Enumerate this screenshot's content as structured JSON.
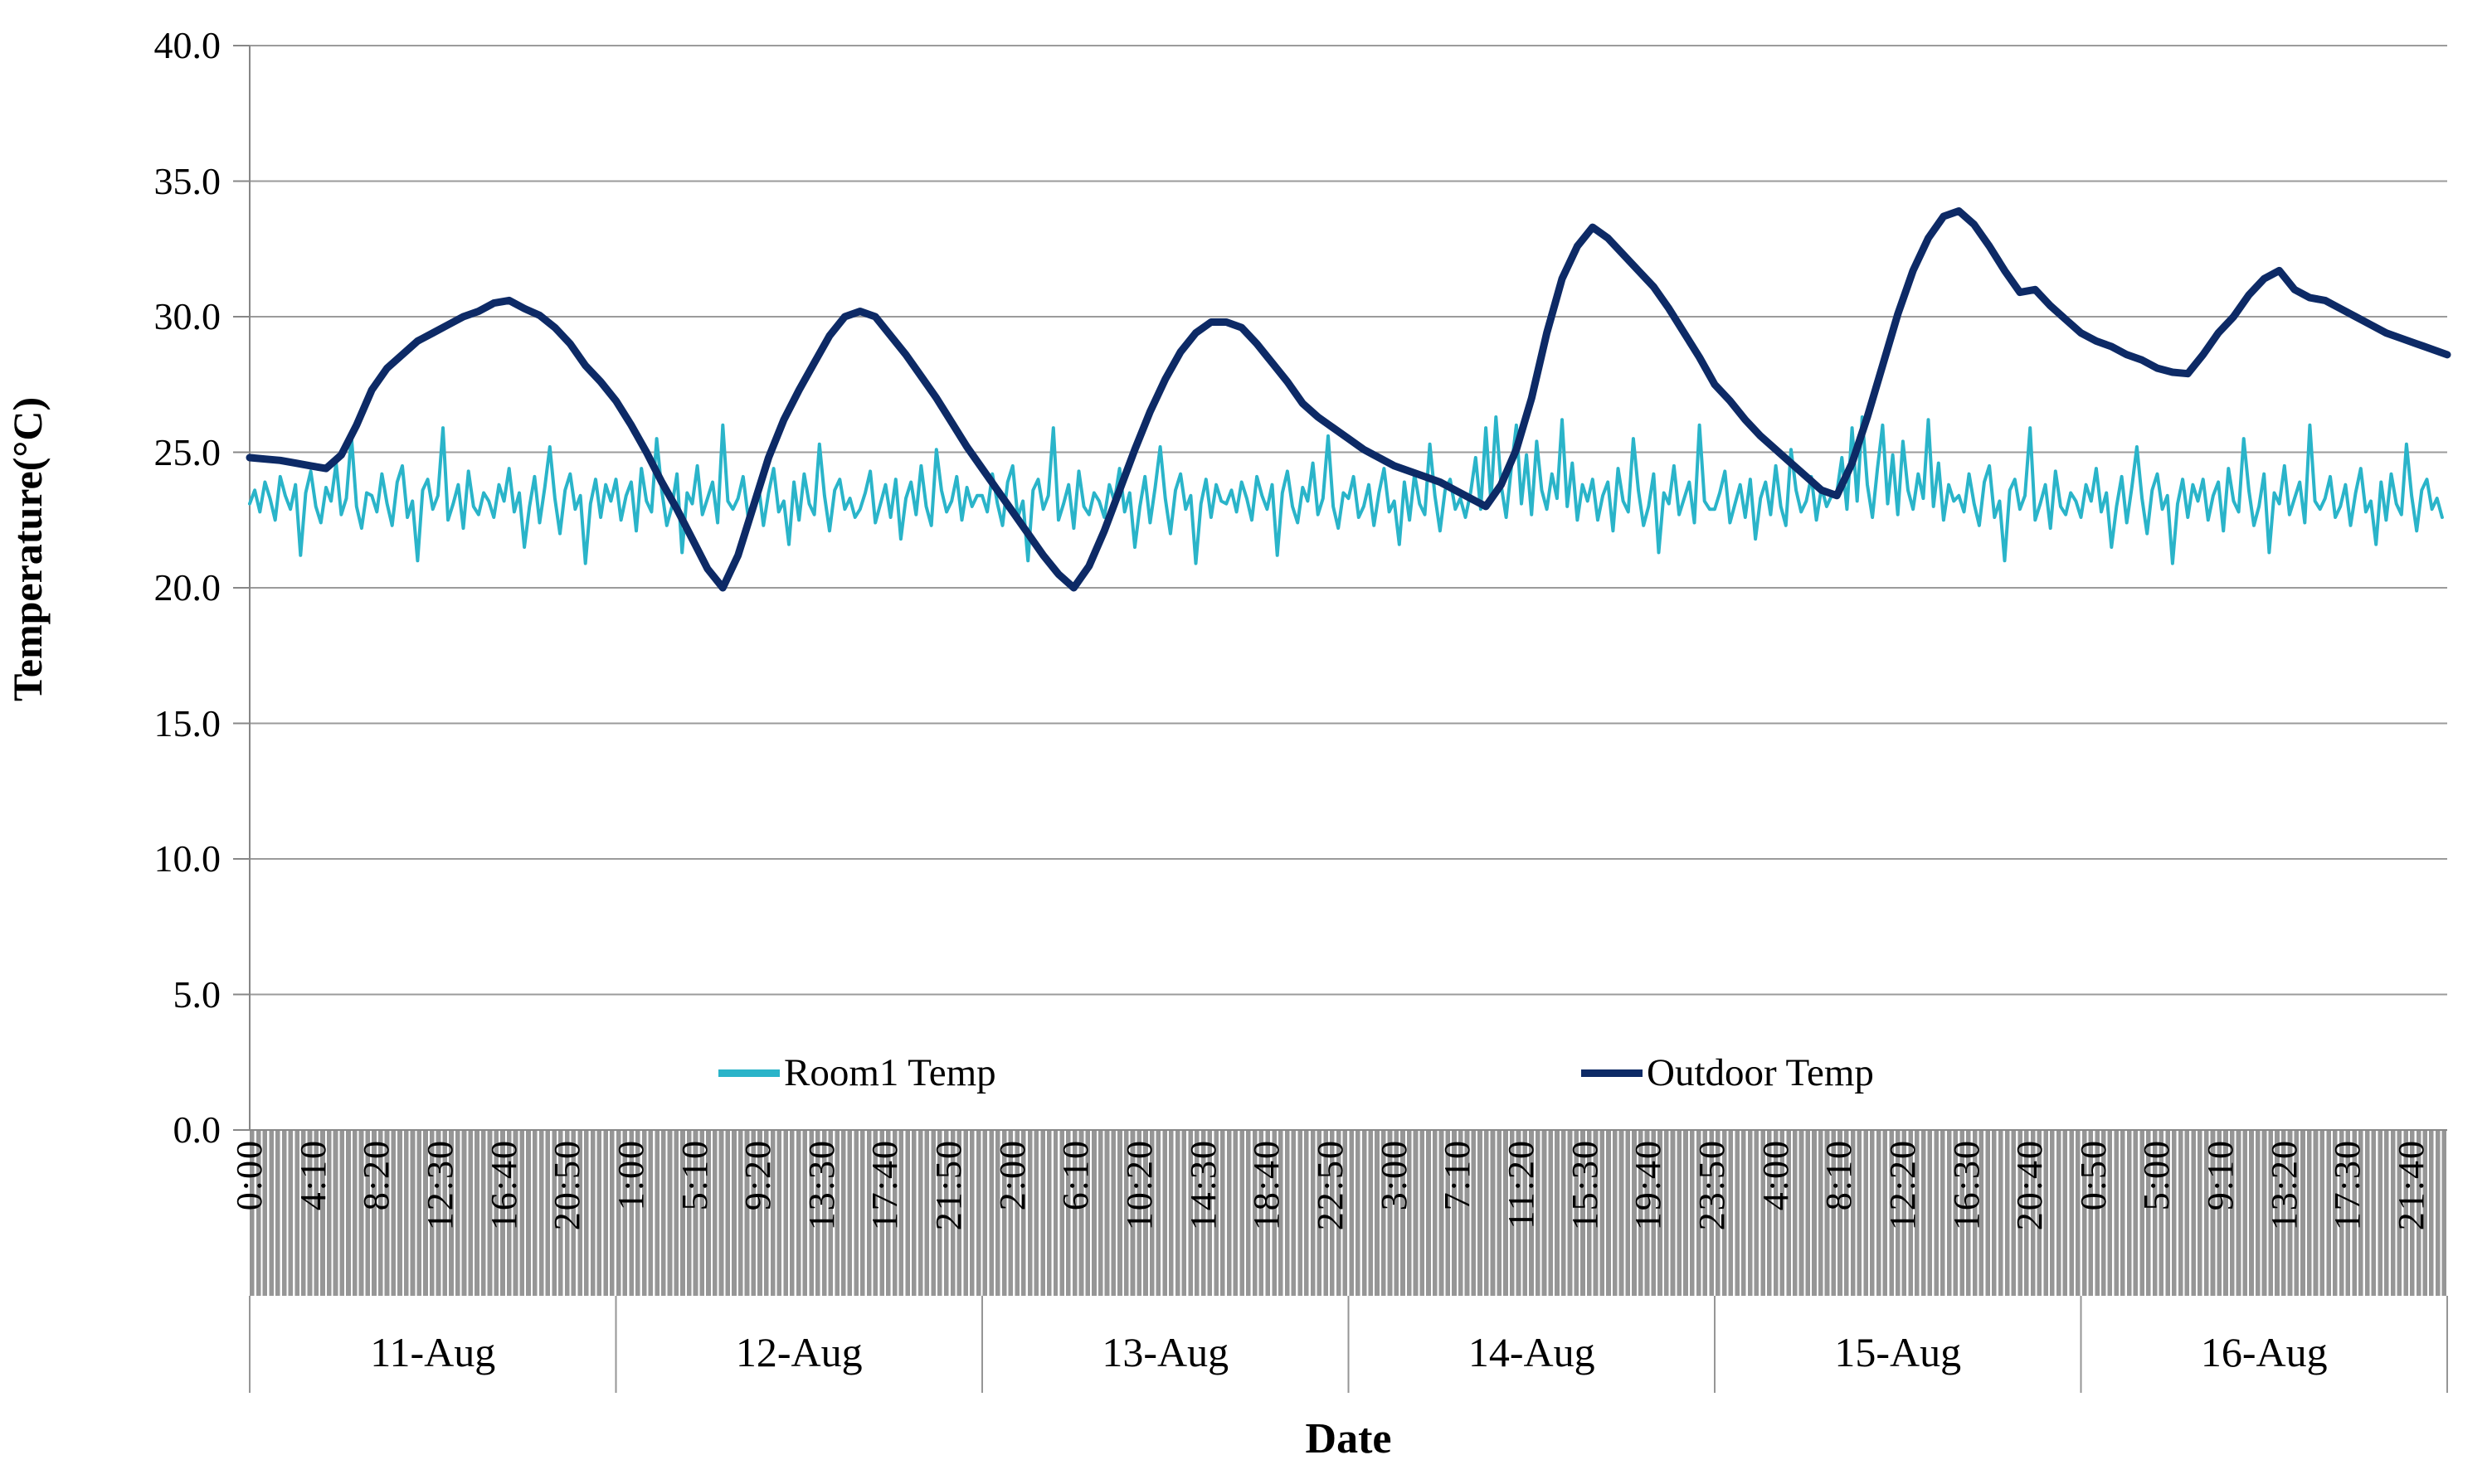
{
  "chart_data": {
    "type": "line",
    "title": "",
    "xlabel": "Date",
    "ylabel": "Temperature(°C)",
    "ylim": [
      0,
      40
    ],
    "y_tick_step": 5,
    "y_tick_labels": [
      "40.0",
      "35.0",
      "30.0",
      "25.0",
      "20.0",
      "15.0",
      "10.0",
      "5.0",
      "0.0"
    ],
    "grid": true,
    "legend_position": "bottom-inside",
    "x_unit": "hours since 11-Aug 00:00",
    "x_total_hours": 144,
    "x_tick_interval_minutes": 250,
    "x_tick_labels": [
      "0:00",
      "4:10",
      "8:20",
      "12:30",
      "16:40",
      "20:50",
      "1:00",
      "5:10",
      "9:20",
      "13:30",
      "17:40",
      "21:50",
      "2:00",
      "6:10",
      "10:20",
      "14:30",
      "18:40",
      "22:50",
      "3:00",
      "7:10",
      "11:20",
      "15:30",
      "19:40",
      "23:50",
      "4:00",
      "8:10",
      "12:20",
      "16:30",
      "20:40",
      "0:50",
      "5:00",
      "9:10",
      "13:20",
      "17:30",
      "21:40"
    ],
    "x_group_labels": [
      "11-Aug",
      "12-Aug",
      "13-Aug",
      "14-Aug",
      "15-Aug",
      "16-Aug"
    ],
    "colors": {
      "room1": "#2ab4c9",
      "outdoor": "#0d2a66",
      "gridline": "#9b9b9b",
      "axis": "#878787",
      "tick_band_fill": "#969696",
      "tick_band_stripe": "#ffffff",
      "text": "#000000"
    },
    "series": [
      {
        "name": "Room1 Temp",
        "color": "#2ab4c9",
        "stroke_width": 4,
        "x_start_hours": 0,
        "x_step_hours": 0.333333,
        "values": [
          23.1,
          23.6,
          22.8,
          23.9,
          23.3,
          22.5,
          24.1,
          23.4,
          22.9,
          23.8,
          21.2,
          23.5,
          24.3,
          23.0,
          22.4,
          23.7,
          23.2,
          24.6,
          22.7,
          23.3,
          25.6,
          23.0,
          22.2,
          23.5,
          23.4,
          22.8,
          24.2,
          23.1,
          22.3,
          23.9,
          24.5,
          22.6,
          23.2,
          21.0,
          23.6,
          24.0,
          22.9,
          23.4,
          25.9,
          22.5,
          23.1,
          23.8,
          22.2,
          24.3,
          23.0,
          22.7,
          23.5,
          23.2,
          22.6,
          23.8,
          23.2,
          24.4,
          22.8,
          23.5,
          21.5,
          23.0,
          24.1,
          22.4,
          23.7,
          25.2,
          23.3,
          22.0,
          23.6,
          24.2,
          22.9,
          23.4,
          20.9,
          23.1,
          24.0,
          22.6,
          23.8,
          23.2,
          24.0,
          22.5,
          23.4,
          23.9,
          22.1,
          24.4,
          23.2,
          22.8,
          25.5,
          23.6,
          22.3,
          23.0,
          24.2,
          21.3,
          23.5,
          23.1,
          24.5,
          22.7,
          23.3,
          23.9,
          22.4,
          26.0,
          23.2,
          22.9,
          23.3,
          24.1,
          22.6,
          23.0,
          23.8,
          22.3,
          23.5,
          24.4,
          22.8,
          23.2,
          21.6,
          23.9,
          22.5,
          24.2,
          23.1,
          22.7,
          25.3,
          23.4,
          22.1,
          23.6,
          24.0,
          22.9,
          23.3,
          22.6,
          22.9,
          23.5,
          24.3,
          22.4,
          23.1,
          23.8,
          22.6,
          24.0,
          21.8,
          23.3,
          23.9,
          22.7,
          24.5,
          23.0,
          22.3,
          25.1,
          23.6,
          22.8,
          23.2,
          24.1,
          22.5,
          23.7,
          23.0,
          23.4,
          23.4,
          22.8,
          24.2,
          23.1,
          22.3,
          23.9,
          24.5,
          22.6,
          23.2,
          21.0,
          23.6,
          24.0,
          22.9,
          23.4,
          25.9,
          22.5,
          23.1,
          23.8,
          22.2,
          24.3,
          23.0,
          22.7,
          23.5,
          23.2,
          22.6,
          23.8,
          23.2,
          24.4,
          22.8,
          23.5,
          21.5,
          23.0,
          24.1,
          22.4,
          23.7,
          25.2,
          23.3,
          22.0,
          23.6,
          24.2,
          22.9,
          23.4,
          20.9,
          23.1,
          24.0,
          22.6,
          23.8,
          23.2,
          23.1,
          23.6,
          22.8,
          23.9,
          23.3,
          22.5,
          24.1,
          23.4,
          22.9,
          23.8,
          21.2,
          23.5,
          24.3,
          23.0,
          22.4,
          23.7,
          23.2,
          24.6,
          22.7,
          23.3,
          25.6,
          23.0,
          22.2,
          23.5,
          23.3,
          24.1,
          22.6,
          23.0,
          23.8,
          22.3,
          23.5,
          24.4,
          22.8,
          23.2,
          21.6,
          23.9,
          22.5,
          24.2,
          23.1,
          22.7,
          25.3,
          23.4,
          22.1,
          23.6,
          24.0,
          22.9,
          23.3,
          22.6,
          23.5,
          24.8,
          22.9,
          25.9,
          23.2,
          26.3,
          23.8,
          22.6,
          24.4,
          26.0,
          23.1,
          24.9,
          22.7,
          25.4,
          23.6,
          22.9,
          24.2,
          23.3,
          26.2,
          23.0,
          24.6,
          22.5,
          23.8,
          23.2,
          24.0,
          22.5,
          23.4,
          23.9,
          22.1,
          24.4,
          23.2,
          22.8,
          25.5,
          23.6,
          22.3,
          23.0,
          24.2,
          21.3,
          23.5,
          23.1,
          24.5,
          22.7,
          23.3,
          23.9,
          22.4,
          26.0,
          23.2,
          22.9,
          22.9,
          23.5,
          24.3,
          22.4,
          23.1,
          23.8,
          22.6,
          24.0,
          21.8,
          23.3,
          23.9,
          22.7,
          24.5,
          23.0,
          22.3,
          25.1,
          23.6,
          22.8,
          23.2,
          24.1,
          22.5,
          23.7,
          23.0,
          23.4,
          23.5,
          24.8,
          22.9,
          25.9,
          23.2,
          26.3,
          23.8,
          22.6,
          24.4,
          26.0,
          23.1,
          24.9,
          22.7,
          25.4,
          23.6,
          22.9,
          24.2,
          23.3,
          26.2,
          23.0,
          24.6,
          22.5,
          23.8,
          23.2,
          23.4,
          22.8,
          24.2,
          23.1,
          22.3,
          23.9,
          24.5,
          22.6,
          23.2,
          21.0,
          23.6,
          24.0,
          22.9,
          23.4,
          25.9,
          22.5,
          23.1,
          23.8,
          22.2,
          24.3,
          23.0,
          22.7,
          23.5,
          23.2,
          22.6,
          23.8,
          23.2,
          24.4,
          22.8,
          23.5,
          21.5,
          23.0,
          24.1,
          22.4,
          23.7,
          25.2,
          23.3,
          22.0,
          23.6,
          24.2,
          22.9,
          23.4,
          20.9,
          23.1,
          24.0,
          22.6,
          23.8,
          23.2,
          24.0,
          22.5,
          23.4,
          23.9,
          22.1,
          24.4,
          23.2,
          22.8,
          25.5,
          23.6,
          22.3,
          23.0,
          24.2,
          21.3,
          23.5,
          23.1,
          24.5,
          22.7,
          23.3,
          23.9,
          22.4,
          26.0,
          23.2,
          22.9,
          23.3,
          24.1,
          22.6,
          23.0,
          23.8,
          22.3,
          23.5,
          24.4,
          22.8,
          23.2,
          21.6,
          23.9,
          22.5,
          24.2,
          23.1,
          22.7,
          25.3,
          23.4,
          22.1,
          23.6,
          24.0,
          22.9,
          23.3,
          22.6
        ]
      },
      {
        "name": "Outdoor Temp",
        "color": "#0d2a66",
        "stroke_width": 9,
        "x_start_hours": 0,
        "x_step_hours": 1,
        "values": [
          24.8,
          24.75,
          24.7,
          24.6,
          24.5,
          24.4,
          24.9,
          26.0,
          27.3,
          28.1,
          28.6,
          29.1,
          29.4,
          29.7,
          30.0,
          30.2,
          30.5,
          30.6,
          30.3,
          30.05,
          29.6,
          29.0,
          28.2,
          27.6,
          26.9,
          26.0,
          25.0,
          23.9,
          22.9,
          21.8,
          20.7,
          20.0,
          21.2,
          23.0,
          24.8,
          26.2,
          27.3,
          28.3,
          29.3,
          30.0,
          30.2,
          30.0,
          29.3,
          28.6,
          27.8,
          27.0,
          26.1,
          25.2,
          24.4,
          23.6,
          22.8,
          22.0,
          21.2,
          20.5,
          20.0,
          20.8,
          22.1,
          23.6,
          25.1,
          26.5,
          27.7,
          28.7,
          29.4,
          29.8,
          29.8,
          29.6,
          29.0,
          28.3,
          27.6,
          26.8,
          26.3,
          25.9,
          25.5,
          25.1,
          24.8,
          24.5,
          24.3,
          24.1,
          23.9,
          23.6,
          23.3,
          23.0,
          23.8,
          25.1,
          27.0,
          29.4,
          31.4,
          32.6,
          33.3,
          32.9,
          32.3,
          31.7,
          31.1,
          30.3,
          29.4,
          28.5,
          27.5,
          26.9,
          26.2,
          25.6,
          25.1,
          24.6,
          24.1,
          23.6,
          23.4,
          24.6,
          26.3,
          28.2,
          30.1,
          31.7,
          32.9,
          33.7,
          33.9,
          33.4,
          32.6,
          31.7,
          30.9,
          31.0,
          30.4,
          29.9,
          29.4,
          29.1,
          28.9,
          28.6,
          28.4,
          28.1,
          27.95,
          27.9,
          28.6,
          29.4,
          30.0,
          30.8,
          31.4,
          31.7,
          31.0,
          30.7,
          30.6,
          30.3,
          30.0,
          29.7,
          29.4,
          29.2,
          29.0,
          28.8,
          28.6
        ]
      }
    ]
  }
}
